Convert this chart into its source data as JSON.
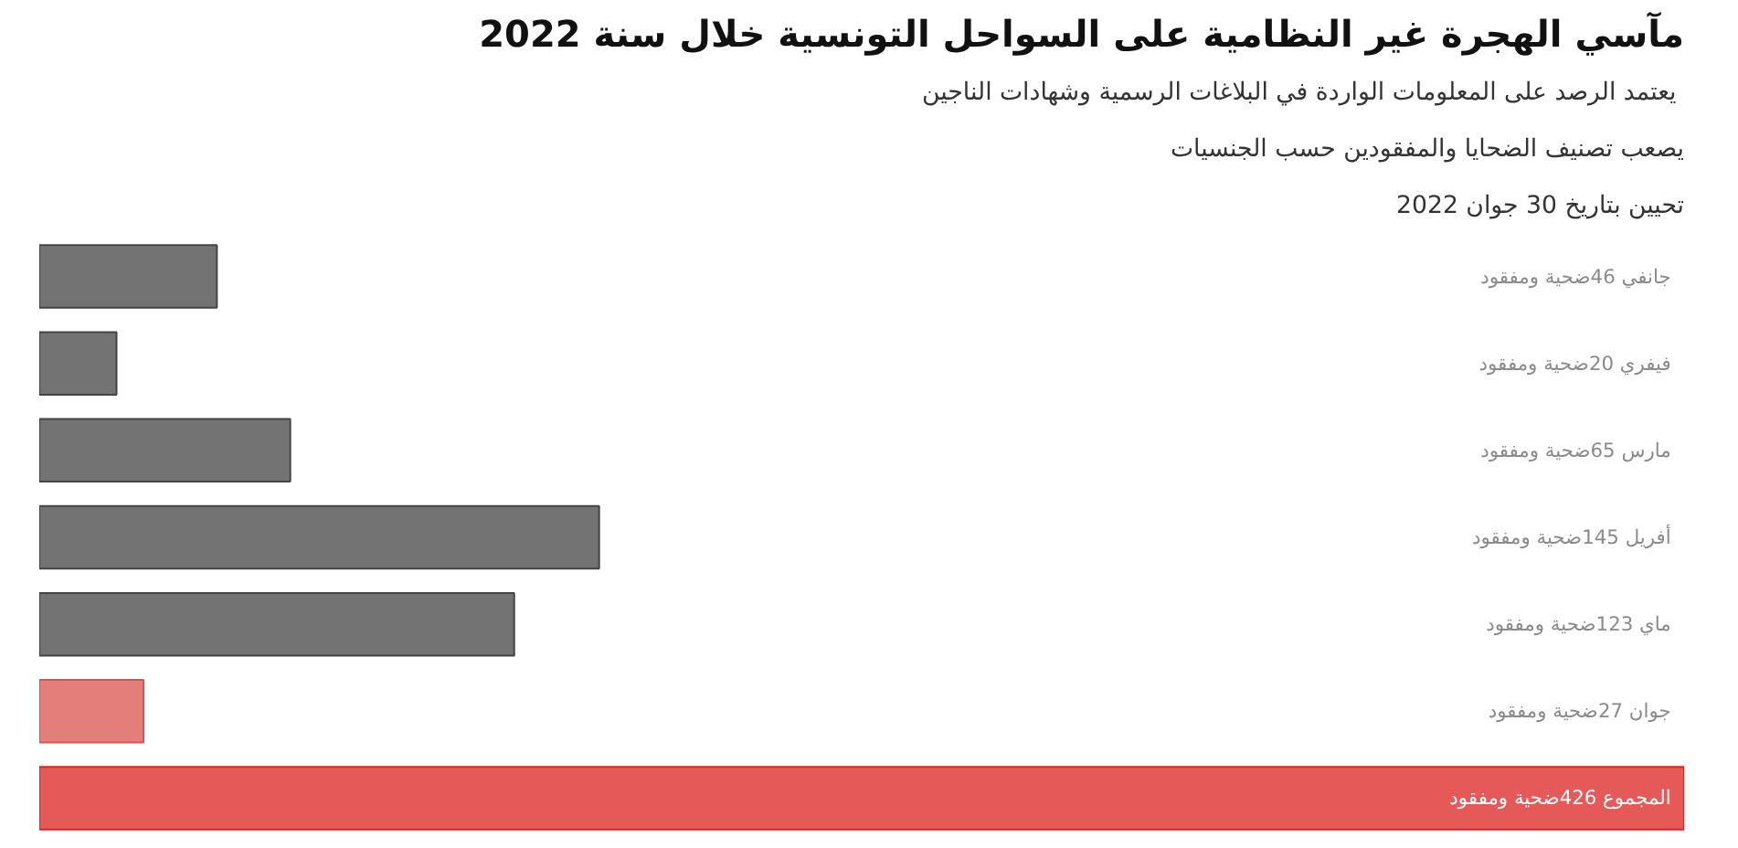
{
  "chart_data": {
    "type": "bar",
    "orientation": "horizontal",
    "title": "مآسي الهجرة غير النظامية على السواحل التونسية خلال سنة 2022",
    "subtitle": "يعتمد الرصد على المعلومات الواردة في البلاغات الرسمية  وشهادات الناجين",
    "annotations": [
      "يصعب تصنيف الضحايا والمفقودين حسب الجنسيات",
      "تحيين بتاريخ 30 جوان 2022"
    ],
    "categories": [
      null,
      null,
      null,
      null,
      null,
      null,
      null
    ],
    "values": [
      46,
      20,
      65,
      145,
      123,
      27,
      426
    ],
    "colors": [
      "#444444",
      "#444444",
      "#444444",
      "#444444",
      "#444444",
      "#d9534f",
      "#dd2222"
    ],
    "value_labels": [
      "جانفي 46ضحية ومفقود",
      "فيفري 20ضحية ومفقود",
      "مارس 65ضحية ومفقود",
      "أفريل 145ضحية ومفقود",
      "ماي 123ضحية ومفقود",
      "جوان 27ضحية ومفقود",
      "المجموع 426ضحية ومفقود"
    ],
    "xlim": [
      0,
      426
    ],
    "tick_labels": false,
    "grid": false
  }
}
